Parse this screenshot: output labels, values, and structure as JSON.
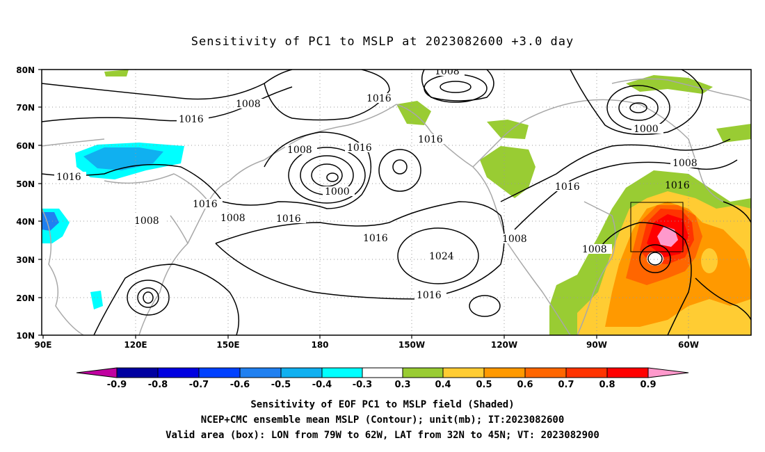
{
  "title": "Sensitivity of PC1 to MSLP at 2023082600 +3.0 day",
  "map": {
    "lat_labels": [
      "80N",
      "70N",
      "60N",
      "50N",
      "40N",
      "30N",
      "20N",
      "10N"
    ],
    "lon_labels": [
      "90E",
      "120E",
      "150E",
      "180",
      "150W",
      "120W",
      "90W",
      "60W"
    ],
    "contour_labels": {
      "c1008_top": "1008",
      "c1008_a": "1008",
      "c1016_a": "1016",
      "c1016_b": "1016",
      "c1008_b": "1008",
      "c1016_c": "1016",
      "c1016_d": "1016",
      "c1000_a": "1000",
      "c1016_e": "1016",
      "c1008_c": "1008",
      "c1016_f": "1016",
      "c1008_d": "1008",
      "c1016_g": "1016",
      "c1024": "1024",
      "c1008_e": "1008",
      "c1016_h": "1016",
      "c1016_i": "1016",
      "c1000_b": "1000",
      "c1008_f": "1008",
      "c1016_j": "1016",
      "c1008_g": "1008"
    },
    "valid_box": {
      "lon_west": "79W",
      "lon_east": "62W",
      "lat_south": "32N",
      "lat_north": "45N"
    }
  },
  "colorbar": {
    "labels": [
      "-0.9",
      "-0.8",
      "-0.7",
      "-0.6",
      "-0.5",
      "-0.4",
      "-0.3",
      "0.3",
      "0.4",
      "0.5",
      "0.6",
      "0.7",
      "0.8",
      "0.9"
    ],
    "colors": {
      "low_tip": "#c000a0",
      "c1": "#0000a0",
      "c2": "#0000e0",
      "c3": "#0040ff",
      "c4": "#2080f0",
      "c5": "#10b0f0",
      "c6": "#00ffff",
      "neutral": "#ffffff",
      "c8": "#99cc33",
      "c9": "#ffcc33",
      "c10": "#ff9900",
      "c11": "#ff6600",
      "c12": "#ff3300",
      "c13": "#ff0000",
      "high_tip": "#ff99cc"
    }
  },
  "footer": {
    "line1": "Sensitivity of EOF PC1 to MSLP field (Shaded)",
    "line2": "NCEP+CMC ensemble mean MSLP (Contour); unit(mb); IT:2023082600",
    "line3": "Valid area (box): LON from 79W to 62W, LAT from 32N to 45N; VT: 2023082900"
  }
}
